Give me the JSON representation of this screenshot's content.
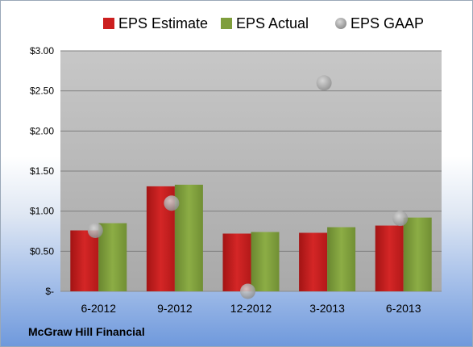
{
  "company_label": "McGraw Hill Financial",
  "colors": {
    "estimate": "#cc1f1f",
    "actual": "#7f9e3c",
    "gaap": "#b8b8b8",
    "plot_bg": "#b3b3b3"
  },
  "chart_data": {
    "type": "bar",
    "categories": [
      "6-2012",
      "9-2012",
      "12-2012",
      "3-2013",
      "6-2013"
    ],
    "series": [
      {
        "name": "EPS Estimate",
        "type": "bar",
        "color": "#cc1f1f",
        "values": [
          0.76,
          1.31,
          0.72,
          0.73,
          0.82
        ]
      },
      {
        "name": "EPS Actual",
        "type": "bar",
        "color": "#7f9e3c",
        "values": [
          0.85,
          1.33,
          0.74,
          0.8,
          0.92
        ]
      },
      {
        "name": "EPS GAAP",
        "type": "scatter",
        "color": "#b8b8b8",
        "values": [
          0.76,
          1.1,
          0.0,
          2.6,
          0.91
        ]
      }
    ],
    "ylim": [
      0,
      3.0
    ],
    "yticks": [
      0,
      0.5,
      1.0,
      1.5,
      2.0,
      2.5,
      3.0
    ],
    "ytick_labels": [
      "$-",
      "$0.50",
      "$1.00",
      "$1.50",
      "$2.00",
      "$2.50",
      "$3.00"
    ],
    "grid": true,
    "legend_position": "top"
  }
}
